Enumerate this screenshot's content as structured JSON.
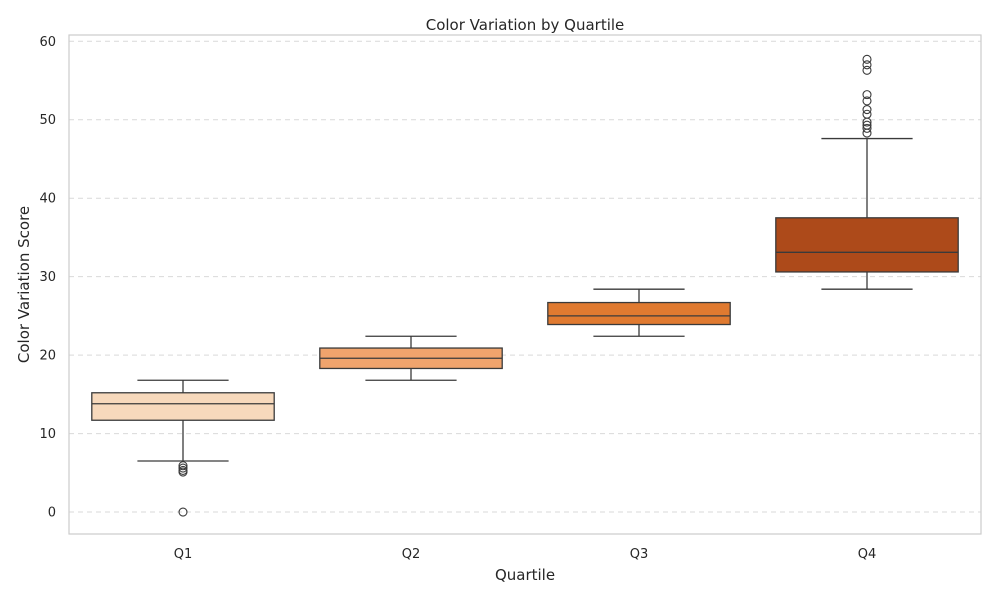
{
  "chart_data": {
    "type": "box",
    "title": "Color Variation by Quartile",
    "xlabel": "Quartile",
    "ylabel": "Color Variation Score",
    "ylim": [
      -2.8,
      60.8
    ],
    "yticks": [
      0,
      10,
      20,
      30,
      40,
      50,
      60
    ],
    "grid": "horizontal-dashed",
    "categories": [
      "Q1",
      "Q2",
      "Q3",
      "Q4"
    ],
    "boxes": [
      {
        "category": "Q1",
        "whisker_low": 6.5,
        "q1": 11.7,
        "median": 13.8,
        "q3": 15.2,
        "whisker_high": 16.8,
        "outliers": [
          0.0,
          5.1,
          5.3,
          5.6,
          5.9
        ],
        "color": "#f7d9bc"
      },
      {
        "category": "Q2",
        "whisker_low": 16.8,
        "q1": 18.3,
        "median": 19.6,
        "q3": 20.9,
        "whisker_high": 22.4,
        "outliers": [],
        "color": "#f0a46d"
      },
      {
        "category": "Q3",
        "whisker_low": 22.4,
        "q1": 23.9,
        "median": 25.0,
        "q3": 26.7,
        "whisker_high": 28.4,
        "outliers": [],
        "color": "#e07a30"
      },
      {
        "category": "Q4",
        "whisker_low": 28.4,
        "q1": 30.6,
        "median": 33.1,
        "q3": 37.5,
        "whisker_high": 47.6,
        "outliers": [
          48.3,
          48.9,
          49.3,
          49.7,
          50.7,
          51.3,
          52.4,
          53.2,
          56.3,
          57.0,
          57.7
        ],
        "color": "#ad4a1a"
      }
    ]
  }
}
